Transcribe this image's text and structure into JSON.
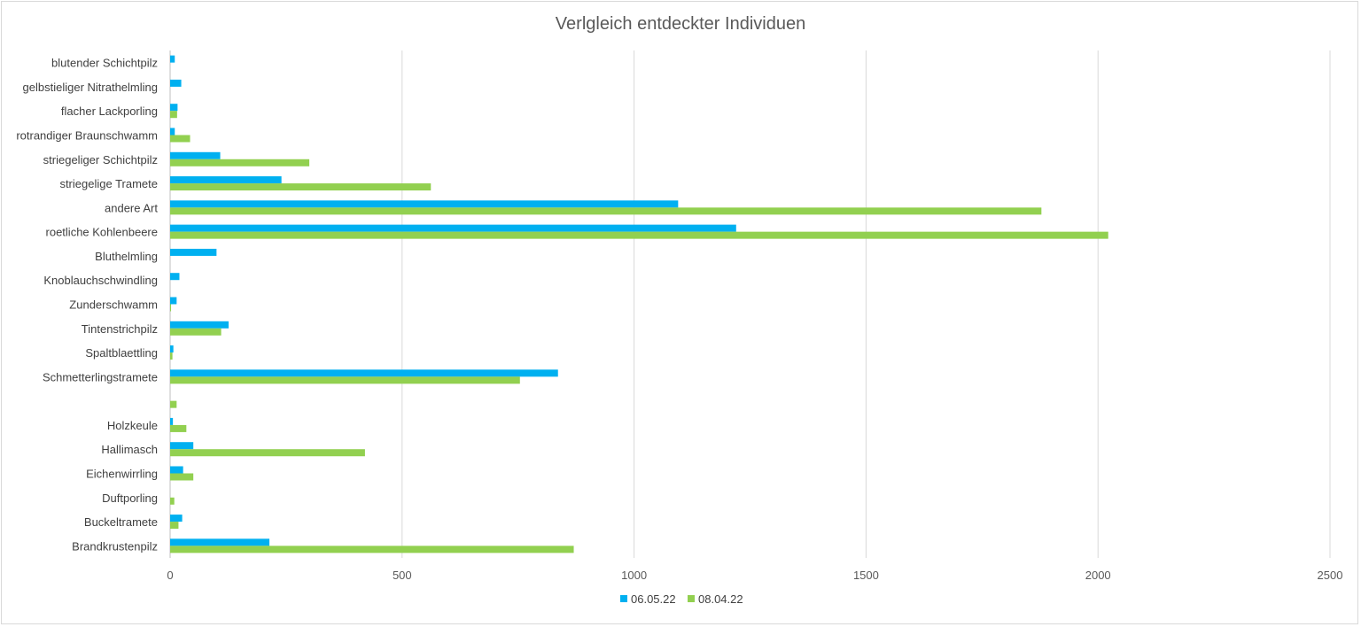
{
  "chart_data": {
    "type": "bar",
    "orientation": "horizontal",
    "title": "Verlgleich entdeckter Individuen",
    "xlim": [
      0,
      2500
    ],
    "xticks": [
      0,
      500,
      1000,
      1500,
      2000,
      2500
    ],
    "grid": true,
    "legend_position": "bottom",
    "categories": [
      "blutender Schichtpilz",
      "gelbstieliger Nitrathelmling",
      "flacher Lackporling",
      "rotrandiger Braunschwamm",
      "striegeliger Schichtpilz",
      "striegelige Tramete",
      "andere Art",
      "roetliche Kohlenbeere",
      "Bluthelmling",
      "Knoblauchschwindling",
      "Zunderschwamm",
      "Tintenstrichpilz",
      "Spaltblaettling",
      "Schmetterlingstramete",
      "",
      "Holzkeule",
      "Hallimasch",
      "Eichenwirrling",
      "Duftporling",
      "Buckeltramete",
      "Brandkrustenpilz"
    ],
    "series": [
      {
        "name": "06.05.22",
        "color": "#00b0f0",
        "values": [
          10,
          24,
          16,
          10,
          108,
          240,
          1095,
          1220,
          100,
          20,
          14,
          126,
          7,
          836,
          0,
          6,
          50,
          28,
          0,
          26,
          214
        ]
      },
      {
        "name": "08.04.22",
        "color": "#92d050",
        "values": [
          0,
          0,
          15,
          43,
          300,
          562,
          1878,
          2022,
          0,
          0,
          2,
          110,
          5,
          754,
          14,
          35,
          420,
          50,
          9,
          18,
          870
        ]
      }
    ]
  }
}
